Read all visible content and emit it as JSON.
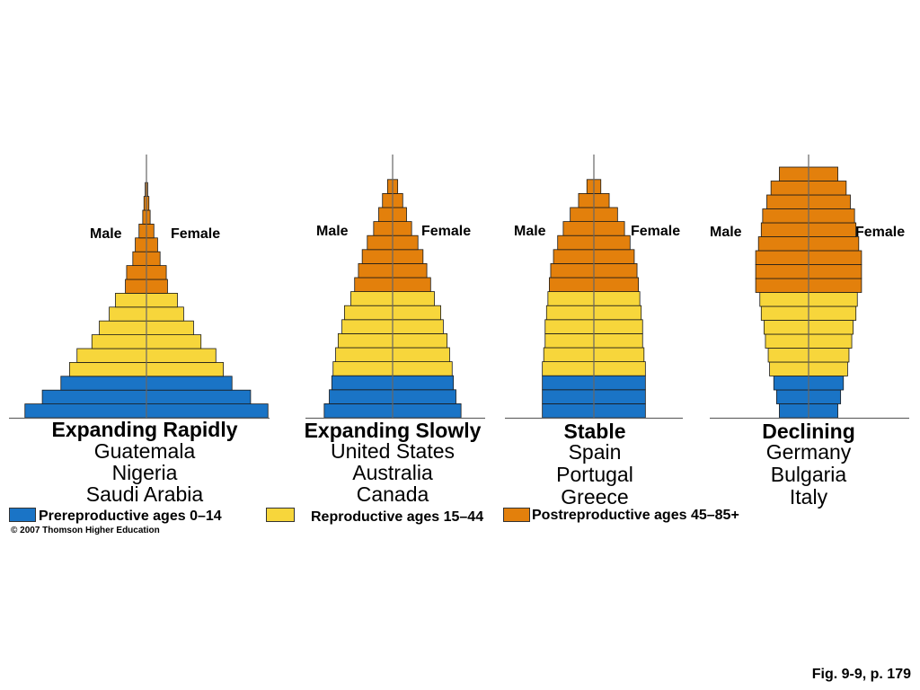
{
  "colors": {
    "prereproductive": "#1a74c6",
    "reproductive": "#f7d63b",
    "postreproductive": "#e3800c"
  },
  "labels": {
    "male": "Male",
    "female": "Female"
  },
  "pyramids": [
    {
      "title": "Expanding Rapidly",
      "countries": [
        "Guatemala",
        "Nigeria",
        "Saudi Arabia"
      ],
      "cohorts": [
        {
          "group": "prereproductive",
          "width": 0.98
        },
        {
          "group": "prereproductive",
          "width": 0.84
        },
        {
          "group": "prereproductive",
          "width": 0.69
        },
        {
          "group": "reproductive",
          "width": 0.62
        },
        {
          "group": "reproductive",
          "width": 0.56
        },
        {
          "group": "reproductive",
          "width": 0.44
        },
        {
          "group": "reproductive",
          "width": 0.38
        },
        {
          "group": "reproductive",
          "width": 0.3
        },
        {
          "group": "reproductive",
          "width": 0.25
        },
        {
          "group": "postreproductive",
          "width": 0.17
        },
        {
          "group": "postreproductive",
          "width": 0.16
        },
        {
          "group": "postreproductive",
          "width": 0.11
        },
        {
          "group": "postreproductive",
          "width": 0.09
        },
        {
          "group": "postreproductive",
          "width": 0.06
        },
        {
          "group": "postreproductive",
          "width": 0.03
        },
        {
          "group": "postreproductive",
          "width": 0.02
        },
        {
          "group": "postreproductive",
          "width": 0.01
        }
      ]
    },
    {
      "title": "Expanding Slowly",
      "countries": [
        "United States",
        "Australia",
        "Canada"
      ],
      "cohorts": [
        {
          "group": "prereproductive",
          "width": 0.54
        },
        {
          "group": "prereproductive",
          "width": 0.5
        },
        {
          "group": "prereproductive",
          "width": 0.48
        },
        {
          "group": "reproductive",
          "width": 0.47
        },
        {
          "group": "reproductive",
          "width": 0.45
        },
        {
          "group": "reproductive",
          "width": 0.43
        },
        {
          "group": "reproductive",
          "width": 0.4
        },
        {
          "group": "reproductive",
          "width": 0.38
        },
        {
          "group": "reproductive",
          "width": 0.33
        },
        {
          "group": "postreproductive",
          "width": 0.3
        },
        {
          "group": "postreproductive",
          "width": 0.27
        },
        {
          "group": "postreproductive",
          "width": 0.24
        },
        {
          "group": "postreproductive",
          "width": 0.2
        },
        {
          "group": "postreproductive",
          "width": 0.15
        },
        {
          "group": "postreproductive",
          "width": 0.11
        },
        {
          "group": "postreproductive",
          "width": 0.08
        },
        {
          "group": "postreproductive",
          "width": 0.04
        }
      ]
    },
    {
      "title": "Stable",
      "countries": [
        "Spain",
        "Portugal",
        "Greece"
      ],
      "cohorts": [
        {
          "group": "prereproductive",
          "width": 0.37
        },
        {
          "group": "prereproductive",
          "width": 0.37
        },
        {
          "group": "prereproductive",
          "width": 0.37
        },
        {
          "group": "reproductive",
          "width": 0.37
        },
        {
          "group": "reproductive",
          "width": 0.36
        },
        {
          "group": "reproductive",
          "width": 0.35
        },
        {
          "group": "reproductive",
          "width": 0.35
        },
        {
          "group": "reproductive",
          "width": 0.34
        },
        {
          "group": "reproductive",
          "width": 0.33
        },
        {
          "group": "postreproductive",
          "width": 0.32
        },
        {
          "group": "postreproductive",
          "width": 0.31
        },
        {
          "group": "postreproductive",
          "width": 0.29
        },
        {
          "group": "postreproductive",
          "width": 0.26
        },
        {
          "group": "postreproductive",
          "width": 0.22
        },
        {
          "group": "postreproductive",
          "width": 0.17
        },
        {
          "group": "postreproductive",
          "width": 0.11
        },
        {
          "group": "postreproductive",
          "width": 0.05
        }
      ]
    },
    {
      "title": "Declining",
      "countries": [
        "Germany",
        "Bulgaria",
        "Italy"
      ],
      "cohorts": [
        {
          "group": "prereproductive",
          "width": 0.21
        },
        {
          "group": "prereproductive",
          "width": 0.23
        },
        {
          "group": "prereproductive",
          "width": 0.25
        },
        {
          "group": "reproductive",
          "width": 0.28
        },
        {
          "group": "reproductive",
          "width": 0.29
        },
        {
          "group": "reproductive",
          "width": 0.31
        },
        {
          "group": "reproductive",
          "width": 0.32
        },
        {
          "group": "reproductive",
          "width": 0.34
        },
        {
          "group": "reproductive",
          "width": 0.35
        },
        {
          "group": "postreproductive",
          "width": 0.38
        },
        {
          "group": "postreproductive",
          "width": 0.38
        },
        {
          "group": "postreproductive",
          "width": 0.38
        },
        {
          "group": "postreproductive",
          "width": 0.36
        },
        {
          "group": "postreproductive",
          "width": 0.34
        },
        {
          "group": "postreproductive",
          "width": 0.33
        },
        {
          "group": "postreproductive",
          "width": 0.3
        },
        {
          "group": "postreproductive",
          "width": 0.27
        },
        {
          "group": "postreproductive",
          "width": 0.21
        }
      ]
    }
  ],
  "legend": {
    "prereproductive": "Prereproductive ages 0–14",
    "reproductive": "Reproductive ages 15–44",
    "postreproductive": "Postreproductive ages 45–85+"
  },
  "copyright": "© 2007 Thomson Higher Education",
  "figure_ref": "Fig. 9-9, p. 179"
}
